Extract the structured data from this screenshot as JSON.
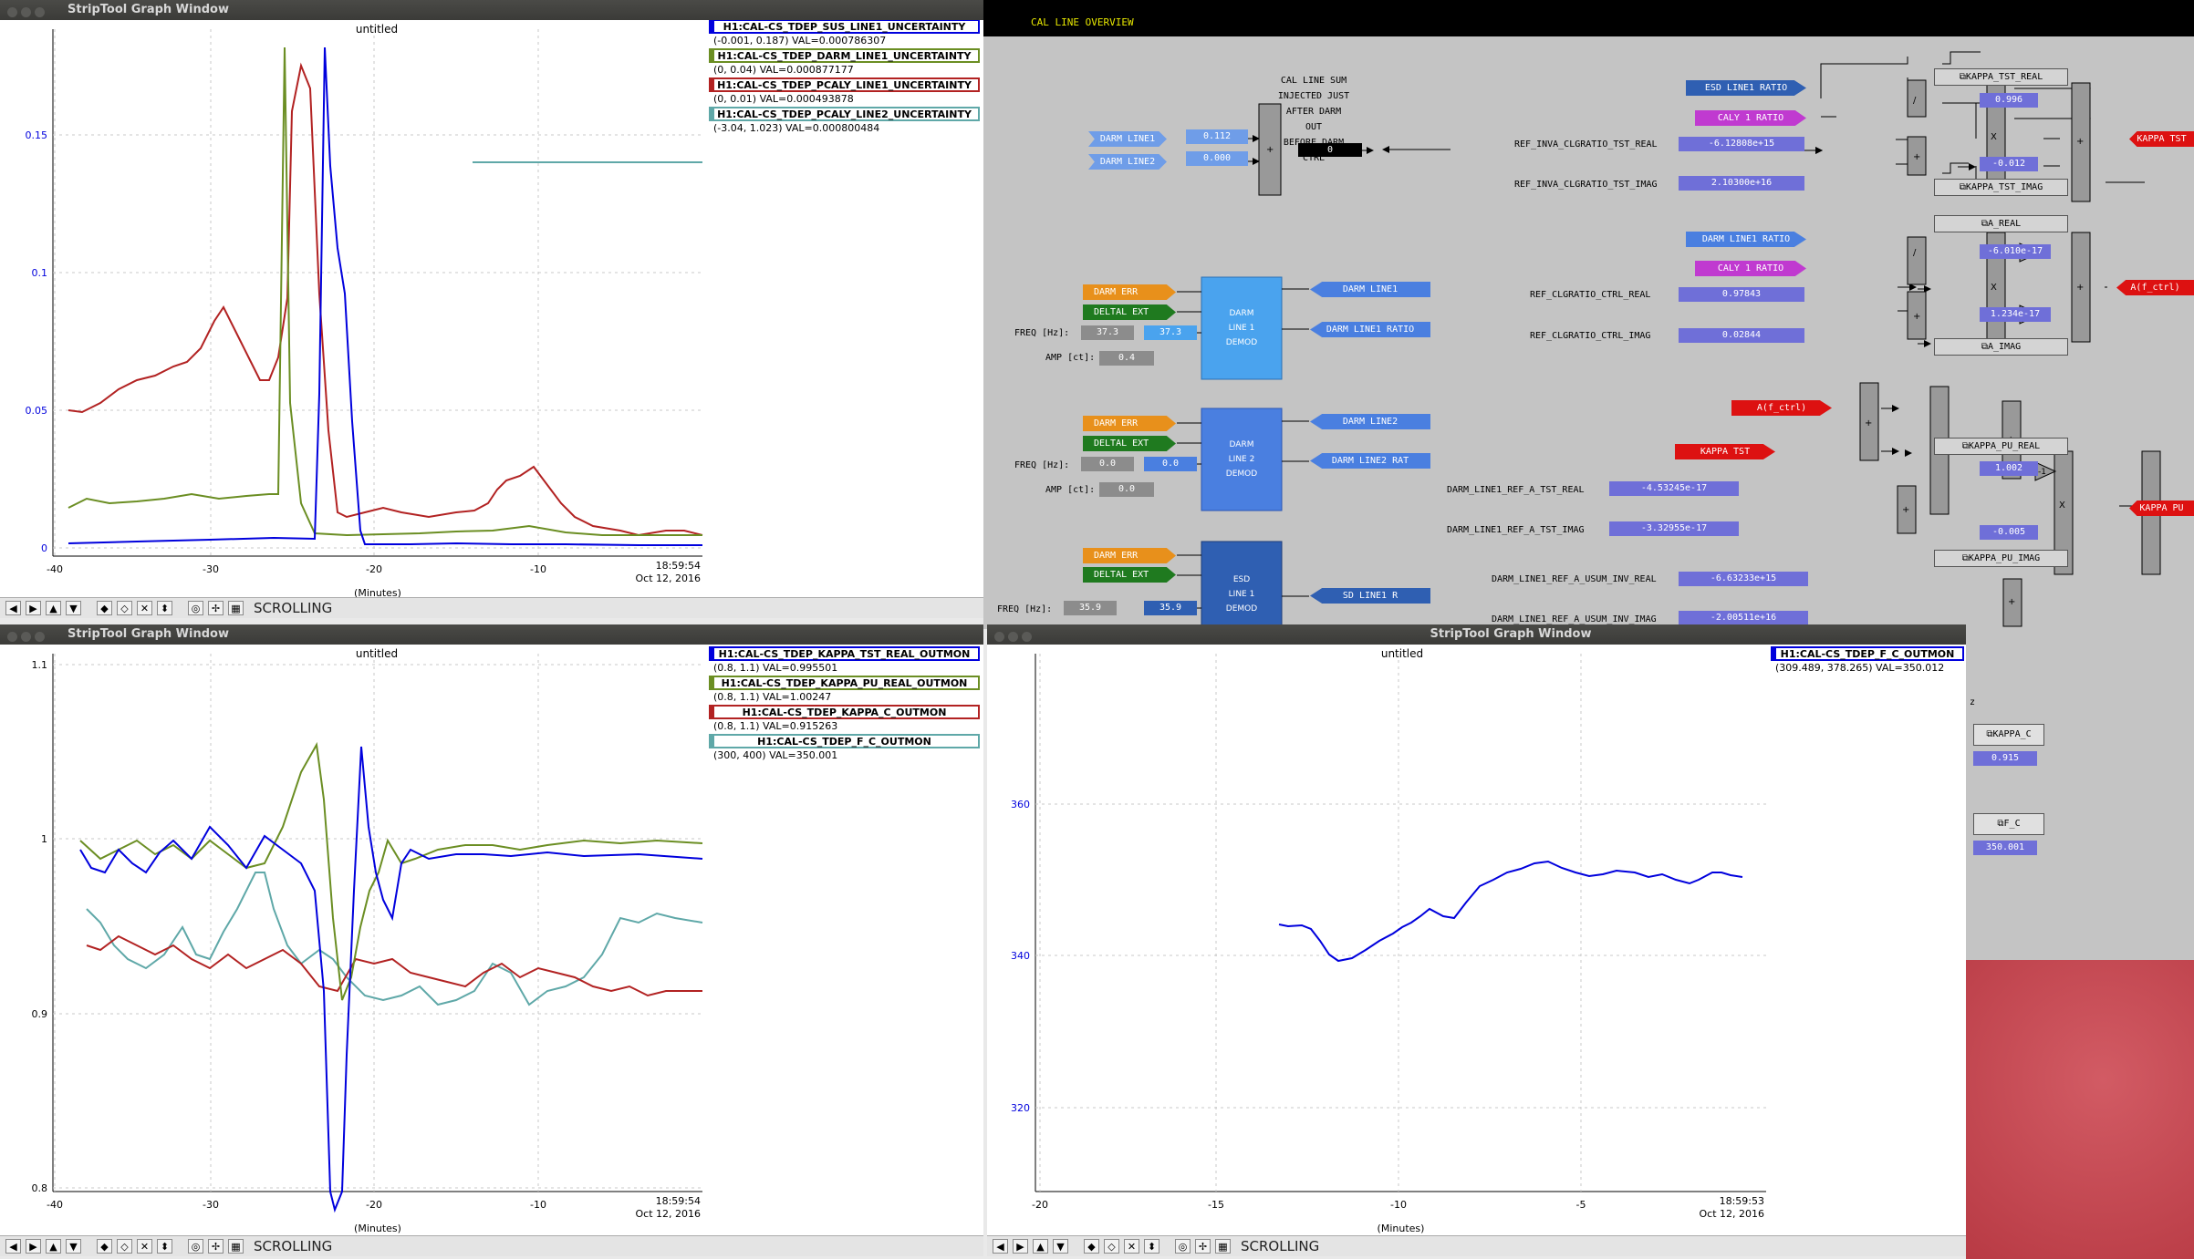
{
  "windows": {
    "top_left": {
      "title": "StripTool Graph Window",
      "plot_title": "untitled",
      "date": "Oct 12, 2016",
      "time": "18:59:54",
      "xlabel": "(Minutes)",
      "xticks": [
        "-40",
        "-30",
        "-20",
        "-10"
      ],
      "yticks": [
        "0.15",
        "0.1",
        "0.05",
        "0"
      ],
      "legend": [
        {
          "name": "H1:CAL-CS_TDEP_SUS_LINE1_UNCERTAINTY",
          "sub": "(-0.001, 0.187) VAL=0.000786307",
          "color": "#0000dd"
        },
        {
          "name": "H1:CAL-CS_TDEP_DARM_LINE1_UNCERTAINTY",
          "sub": "(0, 0.04) VAL=0.000877177",
          "color": "#6b8e23"
        },
        {
          "name": "H1:CAL-CS_TDEP_PCALY_LINE1_UNCERTAINTY",
          "sub": "(0, 0.01) VAL=0.000493878",
          "color": "#b22222"
        },
        {
          "name": "H1:CAL-CS_TDEP_PCALY_LINE2_UNCERTAINTY",
          "sub": "(-3.04, 1.023) VAL=0.000800484",
          "color": "#5fa8a8"
        }
      ],
      "toolbar_label": "SCROLLING"
    },
    "bottom_left": {
      "title": "StripTool Graph Window",
      "plot_title": "untitled",
      "date": "Oct 12, 2016",
      "time": "18:59:54",
      "xlabel": "(Minutes)",
      "xticks": [
        "-40",
        "-30",
        "-20",
        "-10"
      ],
      "yticks": [
        "1.1",
        "1",
        "0.9",
        "0.8"
      ],
      "legend": [
        {
          "name": "H1:CAL-CS_TDEP_KAPPA_TST_REAL_OUTMON",
          "sub": "(0.8, 1.1) VAL=0.995501",
          "color": "#0000dd"
        },
        {
          "name": "H1:CAL-CS_TDEP_KAPPA_PU_REAL_OUTMON",
          "sub": "(0.8, 1.1) VAL=1.00247",
          "color": "#6b8e23"
        },
        {
          "name": "H1:CAL-CS_TDEP_KAPPA_C_OUTMON",
          "sub": "(0.8, 1.1) VAL=0.915263",
          "color": "#b22222"
        },
        {
          "name": "H1:CAL-CS_TDEP_F_C_OUTMON",
          "sub": "(300, 400) VAL=350.001",
          "color": "#5fa8a8"
        }
      ],
      "toolbar_label": "SCROLLING"
    },
    "bottom_right": {
      "title": "StripTool Graph Window",
      "plot_title": "untitled",
      "date": "Oct 12, 2016",
      "time": "18:59:53",
      "xlabel": "(Minutes)",
      "xticks": [
        "-20",
        "-15",
        "-10",
        "-5"
      ],
      "yticks": [
        "360",
        "340",
        "320"
      ],
      "legend": [
        {
          "name": "H1:CAL-CS_TDEP_F_C_OUTMON",
          "sub": "(309.489, 378.265) VAL=350.012",
          "color": "#0000dd"
        }
      ],
      "toolbar_label": "SCROLLING"
    }
  },
  "medm": {
    "title": "CAL LINE OVERVIEW",
    "injected_note": [
      "CAL LINE SUM",
      "INJECTED JUST",
      "AFTER DARM OUT",
      "BEFORE DARM CTRL"
    ],
    "injected_value": "0",
    "darm_line1_label": "DARM LINE1",
    "darm_line1_value": "0.112",
    "darm_line2_label": "DARM LINE2",
    "darm_line2_value": "0.000",
    "demod1": {
      "err": "DARM ERR",
      "ext": "DELTAL EXT",
      "freq_label": "FREQ [Hz]:",
      "freq_set": "37.3",
      "freq_read": "37.3",
      "amp_label": "AMP [ct]:",
      "amp": "0.4",
      "block": [
        "DARM",
        "LINE 1",
        "DEMOD"
      ],
      "out1": "DARM LINE1",
      "out2": "DARM LINE1 RATIO"
    },
    "demod2": {
      "err": "DARM ERR",
      "ext": "DELTAL EXT",
      "freq_label": "FREQ [Hz]:",
      "freq_set": "0.0",
      "freq_read": "0.0",
      "amp_label": "AMP [ct]:",
      "amp": "0.0",
      "block": [
        "DARM",
        "LINE 2",
        "DEMOD"
      ],
      "out1": "DARM LINE2",
      "out2": "DARM LINE2 RAT"
    },
    "demod3": {
      "err": "DARM ERR",
      "ext": "DELTAL EXT",
      "freq_label": "FREQ [Hz]:",
      "freq_set": "35.9",
      "freq_read": "35.9",
      "block": [
        "ESD",
        "LINE 1",
        "DEMOD"
      ],
      "out1": "SD LINE1 R"
    },
    "tst": {
      "esd_ratio": "ESD LINE1 RATIO",
      "caly_ratio": "CALY 1 RATIO",
      "real_label": "REF_INVA_CLGRATIO_TST_REAL",
      "real_val": "-6.12808e+15",
      "imag_label": "REF_INVA_CLGRATIO_TST_IMAG",
      "imag_val": "2.10300e+16",
      "btn_real": "KAPPA_TST_REAL",
      "btn_imag": "KAPPA_TST_IMAG",
      "out_real": "0.996",
      "out_imag": "-0.012",
      "result": "KAPPA TST"
    },
    "ctrl": {
      "darm_ratio": "DARM LINE1 RATIO",
      "caly_ratio": "CALY 1 RATIO",
      "real_label": "REF_CLGRATIO_CTRL_REAL",
      "real_val": "0.97843",
      "imag_label": "REF_CLGRATIO_CTRL_IMAG",
      "imag_val": "0.02844",
      "btn_real": "A_REAL",
      "btn_imag": "A_IMAG",
      "out_real": "-6.010e-17",
      "out_imag": "1.234e-17",
      "result": "A(f_ctrl)",
      "neg": "-1"
    },
    "pu": {
      "a_ctrl": "A(f_ctrl)",
      "kappa_tst": "KAPPA TST",
      "tst_real_label": "DARM_LINE1_REF_A_TST_REAL",
      "tst_real_val": "-4.53245e-17",
      "tst_imag_label": "DARM_LINE1_REF_A_TST_IMAG",
      "tst_imag_val": "-3.32955e-17",
      "usum_real_label": "DARM_LINE1_REF_A_USUM_INV_REAL",
      "usum_real_val": "-6.63233e+15",
      "usum_imag_label": "DARM_LINE1_REF_A_USUM_INV_IMAG",
      "usum_imag_val": "-2.00511e+16",
      "btn_real": "KAPPA_PU_REAL",
      "btn_imag": "KAPPA_PU_IMAG",
      "out_real": "1.002",
      "out_imag": "-0.005",
      "result": "KAPPA PU",
      "neg": "-1"
    },
    "side": {
      "z_label": "z",
      "kappa_c_btn": "KAPPA_C",
      "kappa_c_val": "0.915",
      "fc_btn": "F_C",
      "fc_val": "350.001"
    }
  },
  "colors": {
    "blue_line": "#0000dd",
    "green_line": "#6b8e23",
    "red_line": "#b22222",
    "teal_line": "#5fa8a8",
    "medm_bg": "#c4c4c4",
    "value_box": "#6f6fd8",
    "desktop": "#c9474f"
  }
}
